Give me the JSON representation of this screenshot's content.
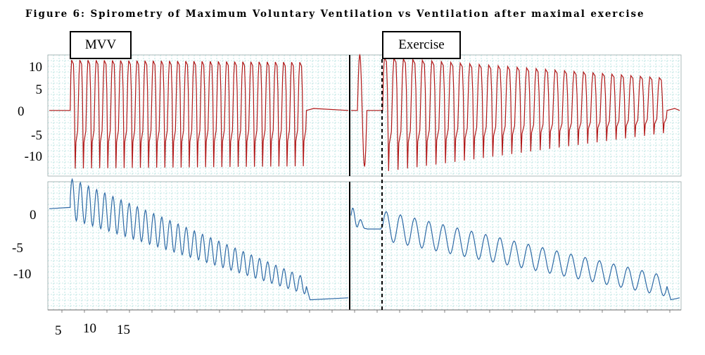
{
  "title": "Figure 6: Spirometry of Maximum Voluntary Ventilation vs Ventilation after maximal exercise",
  "labels": {
    "mvv": "MVV",
    "exercise": "Exercise"
  },
  "upper_y_annotations": [
    "10",
    "5",
    "0",
    "-5",
    "-10"
  ],
  "lower_y_annotations": [
    "0",
    "-5",
    "-10"
  ],
  "x_annotations": [
    "5",
    "10",
    "15"
  ],
  "colors": {
    "volume_trace": "#b01818",
    "cumulative_trace": "#2e6aa6",
    "grid": "#8fd3d0",
    "divider": "#000000"
  },
  "chart_data": {
    "type": "line",
    "title": "Figure 6: Spirometry of Maximum Voluntary Ventilation vs Ventilation after maximal exercise",
    "panels": [
      {
        "name": "upper",
        "ylim": [
          -13,
          11
        ],
        "y_ticks": [
          10,
          5,
          0,
          -5,
          -10
        ],
        "series": [
          {
            "segment": "MVV",
            "xlim": [
              0,
              50
            ],
            "color_key": "volume_trace",
            "baseline_before": 0,
            "start": 3.5,
            "end": 43,
            "cycles": 29,
            "peak": 10,
            "trough": -11.5,
            "decay": 0.15,
            "baseline_after": 0
          },
          {
            "segment": "Exercise",
            "xlim": [
              0,
              52
            ],
            "color_key": "volume_trace",
            "pre_test": {
              "start": 1,
              "end": 2.5,
              "peak": 11,
              "trough": -11
            },
            "start": 5,
            "end": 50,
            "cycles": 30,
            "peak_start": 10.5,
            "peak_end": 6.5,
            "trough_start": -12,
            "trough_end": -4.5,
            "baseline_after": 0
          }
        ]
      },
      {
        "name": "lower",
        "ylim": [
          -15,
          4
        ],
        "y_ticks": [
          0,
          -5,
          -10
        ],
        "series": [
          {
            "segment": "MVV",
            "xlim": [
              0,
              50
            ],
            "color_key": "cumulative_trace",
            "baseline_before": 0,
            "start": 3.5,
            "end": 43,
            "cycles": 29,
            "level_start": 1.5,
            "level_end": -11.5,
            "amp_start": 3,
            "amp_end": 1.2,
            "baseline_after": -13.5
          },
          {
            "segment": "Exercise",
            "xlim": [
              0,
              52
            ],
            "color_key": "cumulative_trace",
            "pre_test": {
              "start": 0,
              "end": 2.5,
              "level": -3,
              "amp": 1.5
            },
            "start": 5,
            "end": 50,
            "cycles": 20,
            "level_start": -2.5,
            "level_end": -11.5,
            "amp_start": 2.2,
            "amp_end": 1.5,
            "baseline_after": -13.5
          }
        ]
      }
    ],
    "x_tick_labels": [
      "5",
      "10",
      "15"
    ]
  }
}
